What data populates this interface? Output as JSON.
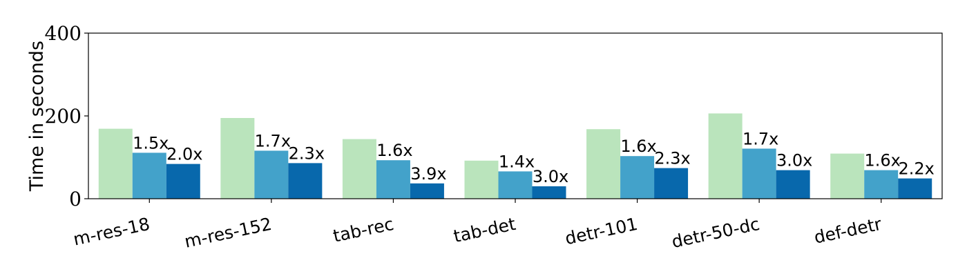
{
  "chart_data": {
    "type": "bar",
    "categories": [
      "m-res-18",
      "m-res-152",
      "tab-rec",
      "tab-det",
      "detr-101",
      "detr-50-dc",
      "def-detr"
    ],
    "series": [
      {
        "values": [
          169,
          195,
          144,
          92,
          168,
          206,
          109
        ],
        "color": "#bae4bc"
      },
      {
        "values": [
          111,
          116,
          93,
          66,
          103,
          121,
          69
        ],
        "color": "#43a2ca",
        "labels": [
          "1.5x",
          "1.7x",
          "1.6x",
          "1.4x",
          "1.6x",
          "1.7x",
          "1.6x"
        ]
      },
      {
        "values": [
          84,
          86,
          37,
          30,
          74,
          69,
          49
        ],
        "color": "#0868ac",
        "labels": [
          "2.0x",
          "2.3x",
          "3.9x",
          "3.0x",
          "2.3x",
          "3.0x",
          "2.2x"
        ]
      }
    ],
    "ylabel": "Time in seconds",
    "xlabel": "",
    "ylim": [
      0,
      400
    ],
    "yticks": [
      "0",
      "200",
      "400"
    ],
    "ytick_values": [
      0,
      200,
      400
    ],
    "grid": false,
    "legend": "none"
  }
}
